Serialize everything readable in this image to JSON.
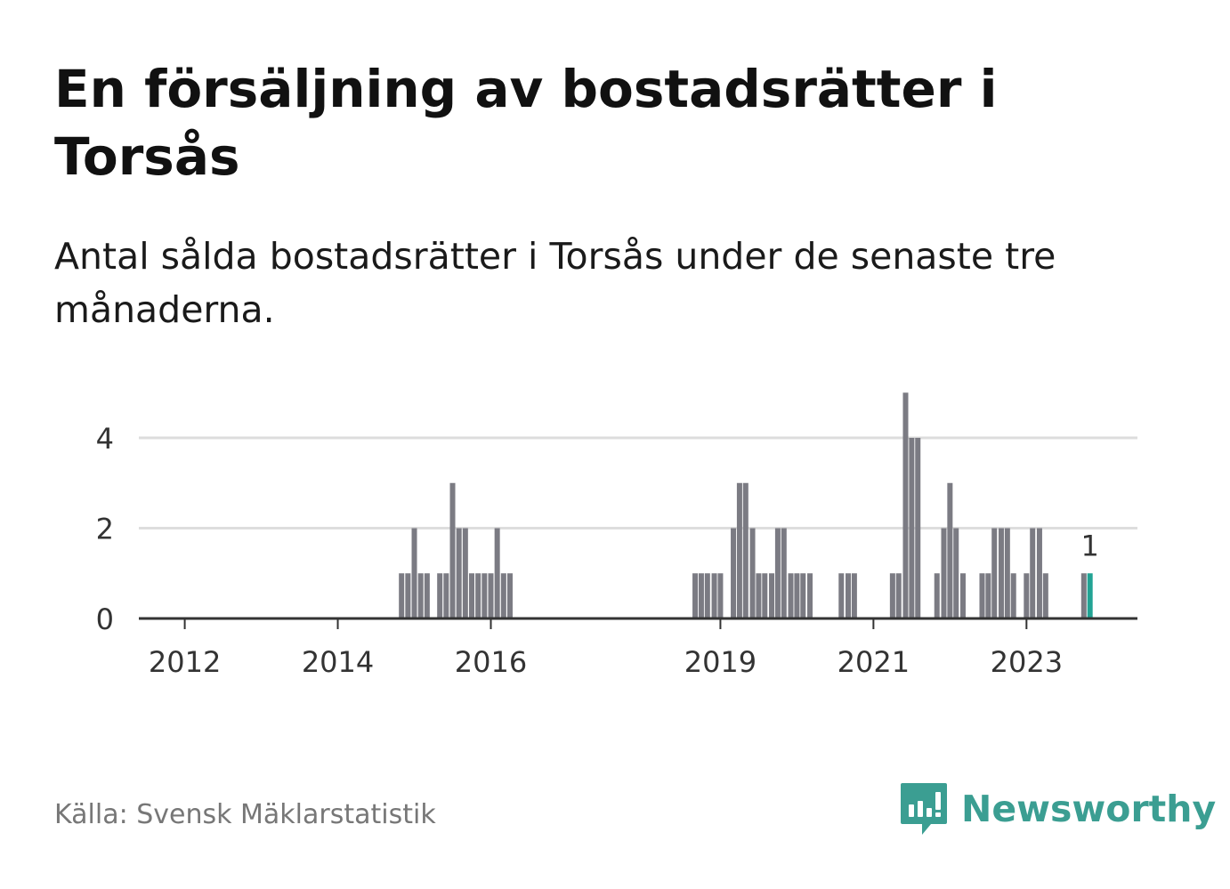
{
  "header": {
    "title": "En försäljning av bostadsrätter i Torsås",
    "subtitle": "Antal sålda bostadsrätter i Torsås under de senaste tre månaderna."
  },
  "footer": {
    "source": "Källa: Svensk Mäklarstatistik",
    "brand": "Newsworthy"
  },
  "colors": {
    "bar": "#7b7b83",
    "highlight": "#22a394",
    "grid": "#dddddd",
    "axis": "#333333",
    "brand": "#3b9e92"
  },
  "chart_data": {
    "type": "bar",
    "title": "En försäljning av bostadsrätter i Torsås",
    "ylabel": "",
    "xlabel": "",
    "ylim": [
      0,
      5
    ],
    "yticks": [
      0,
      2,
      4
    ],
    "xlim": [
      2011.4,
      2024.45
    ],
    "xticks": [
      2012,
      2014,
      2016,
      2019,
      2021,
      2023
    ],
    "x": [
      2014.8333,
      2014.9167,
      2015.0,
      2015.0833,
      2015.1667,
      2015.3333,
      2015.4167,
      2015.5,
      2015.5833,
      2015.6667,
      2015.75,
      2015.8333,
      2015.9167,
      2016.0,
      2016.0833,
      2016.1667,
      2016.25,
      2018.67,
      2018.75,
      2018.83,
      2018.92,
      2019.0,
      2019.17,
      2019.25,
      2019.33,
      2019.42,
      2019.5,
      2019.58,
      2019.67,
      2019.75,
      2019.83,
      2019.92,
      2020.0,
      2020.08,
      2020.17,
      2020.58,
      2020.67,
      2020.75,
      2021.25,
      2021.33,
      2021.42,
      2021.5,
      2021.58,
      2021.83,
      2021.92,
      2022.0,
      2022.08,
      2022.17,
      2022.42,
      2022.5,
      2022.58,
      2022.67,
      2022.75,
      2022.83,
      2023.0,
      2023.08,
      2023.17,
      2023.25,
      2023.75,
      2023.83
    ],
    "values": [
      1,
      1,
      2,
      1,
      1,
      1,
      1,
      3,
      2,
      2,
      1,
      1,
      1,
      1,
      2,
      1,
      1,
      1,
      1,
      1,
      1,
      1,
      2,
      3,
      3,
      2,
      1,
      1,
      1,
      2,
      2,
      1,
      1,
      1,
      1,
      1,
      1,
      1,
      1,
      1,
      5,
      4,
      4,
      1,
      2,
      3,
      2,
      1,
      1,
      1,
      2,
      2,
      2,
      1,
      1,
      2,
      2,
      1,
      1,
      1
    ],
    "highlight_index": 59,
    "highlight_label": "1"
  }
}
